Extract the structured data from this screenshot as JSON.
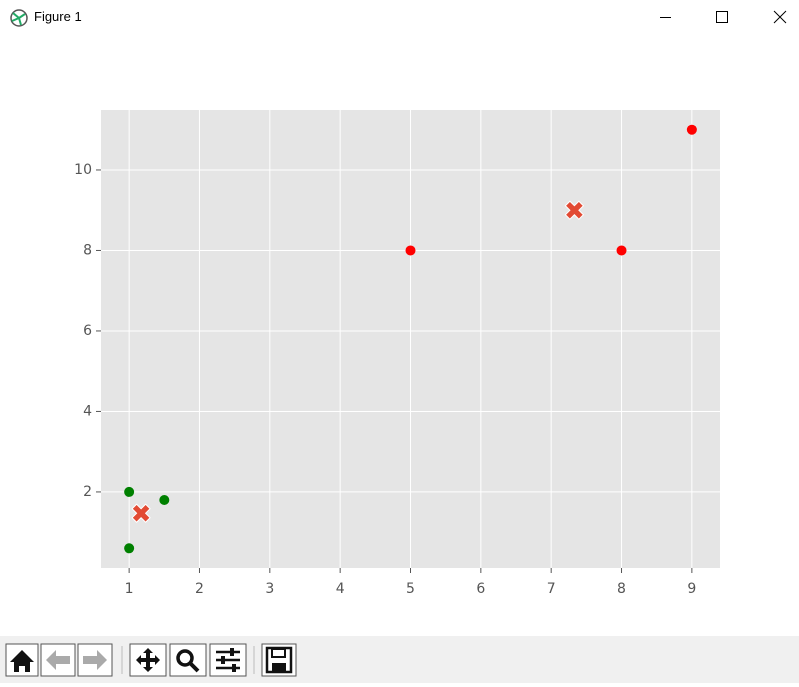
{
  "window": {
    "title": "Figure 1"
  },
  "chart_data": {
    "type": "scatter",
    "series": [
      {
        "color": "red",
        "marker": "circle",
        "x": [
          5,
          8,
          9
        ],
        "values": [
          8,
          8,
          11
        ]
      },
      {
        "color": "green",
        "marker": "circle",
        "x": [
          1,
          1.5,
          1
        ],
        "values": [
          2,
          1.8,
          0.6
        ]
      },
      {
        "color": "#e24a33",
        "marker": "x",
        "x": [
          7.33,
          1.17
        ],
        "values": [
          9,
          1.47
        ]
      }
    ],
    "xlim": [
      0.6,
      9.4
    ],
    "ylim": [
      0.11,
      11.49
    ],
    "xticks": [
      1,
      2,
      3,
      4,
      5,
      6,
      7,
      8,
      9
    ],
    "yticks": [
      2,
      4,
      6,
      8,
      10
    ],
    "grid": true,
    "background": "#e5e5e5"
  }
}
